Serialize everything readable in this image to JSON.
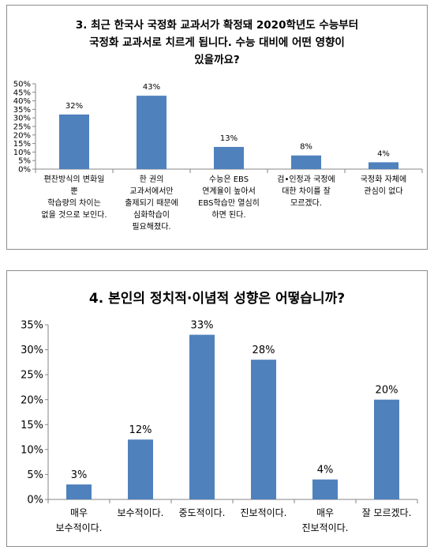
{
  "colors": {
    "bar": "#4f81bd",
    "axis": "#868686",
    "text": "#000000"
  },
  "chart_data": [
    {
      "type": "bar",
      "title_lines": [
        "3. 최근 한국사 국정화 교과서가 확정돼 2020학년도 수능부터",
        "국정화 교과서로 치르게 됩니다. 수능 대비에 어떤 영향이",
        "있을까요?"
      ],
      "categories": [
        [
          "편찬방식의 변화일",
          "뿐",
          "학습량의 차이는",
          "없을 것으로 보인다."
        ],
        [
          "한 권의",
          "교과서에서만",
          "출제되기 때문에",
          "심화학습이",
          "필요해졌다."
        ],
        [
          "수능은 EBS",
          "연계율이 높아서",
          "EBS학습만 열심히",
          "하면 된다."
        ],
        [
          "검•인정과 국정에",
          "대한 차이를 잘",
          "모르겠다."
        ],
        [
          "국정화 자체에",
          "관심이 없다"
        ]
      ],
      "values": [
        32,
        43,
        13,
        8,
        4
      ],
      "data_labels": [
        "32%",
        "43%",
        "13%",
        "8%",
        "4%"
      ],
      "yticks": [
        "0%",
        "5%",
        "10%",
        "15%",
        "20%",
        "25%",
        "30%",
        "35%",
        "40%",
        "45%",
        "50%"
      ],
      "ylim": [
        0,
        50
      ],
      "grid": false
    },
    {
      "type": "bar",
      "title_lines": [
        "4. 본인의 정치적·이념적 성향은 어떻습니까?"
      ],
      "categories": [
        [
          "매우",
          "보수적이다."
        ],
        [
          "보수적이다."
        ],
        [
          "중도적이다."
        ],
        [
          "진보적이다."
        ],
        [
          "매우",
          "진보적이다."
        ],
        [
          "잘 모르겠다."
        ]
      ],
      "values": [
        3,
        12,
        33,
        28,
        4,
        20
      ],
      "data_labels": [
        "3%",
        "12%",
        "33%",
        "28%",
        "4%",
        "20%"
      ],
      "yticks": [
        "0%",
        "5%",
        "10%",
        "15%",
        "20%",
        "25%",
        "30%",
        "35%"
      ],
      "ylim": [
        0,
        35
      ],
      "grid": false
    }
  ]
}
